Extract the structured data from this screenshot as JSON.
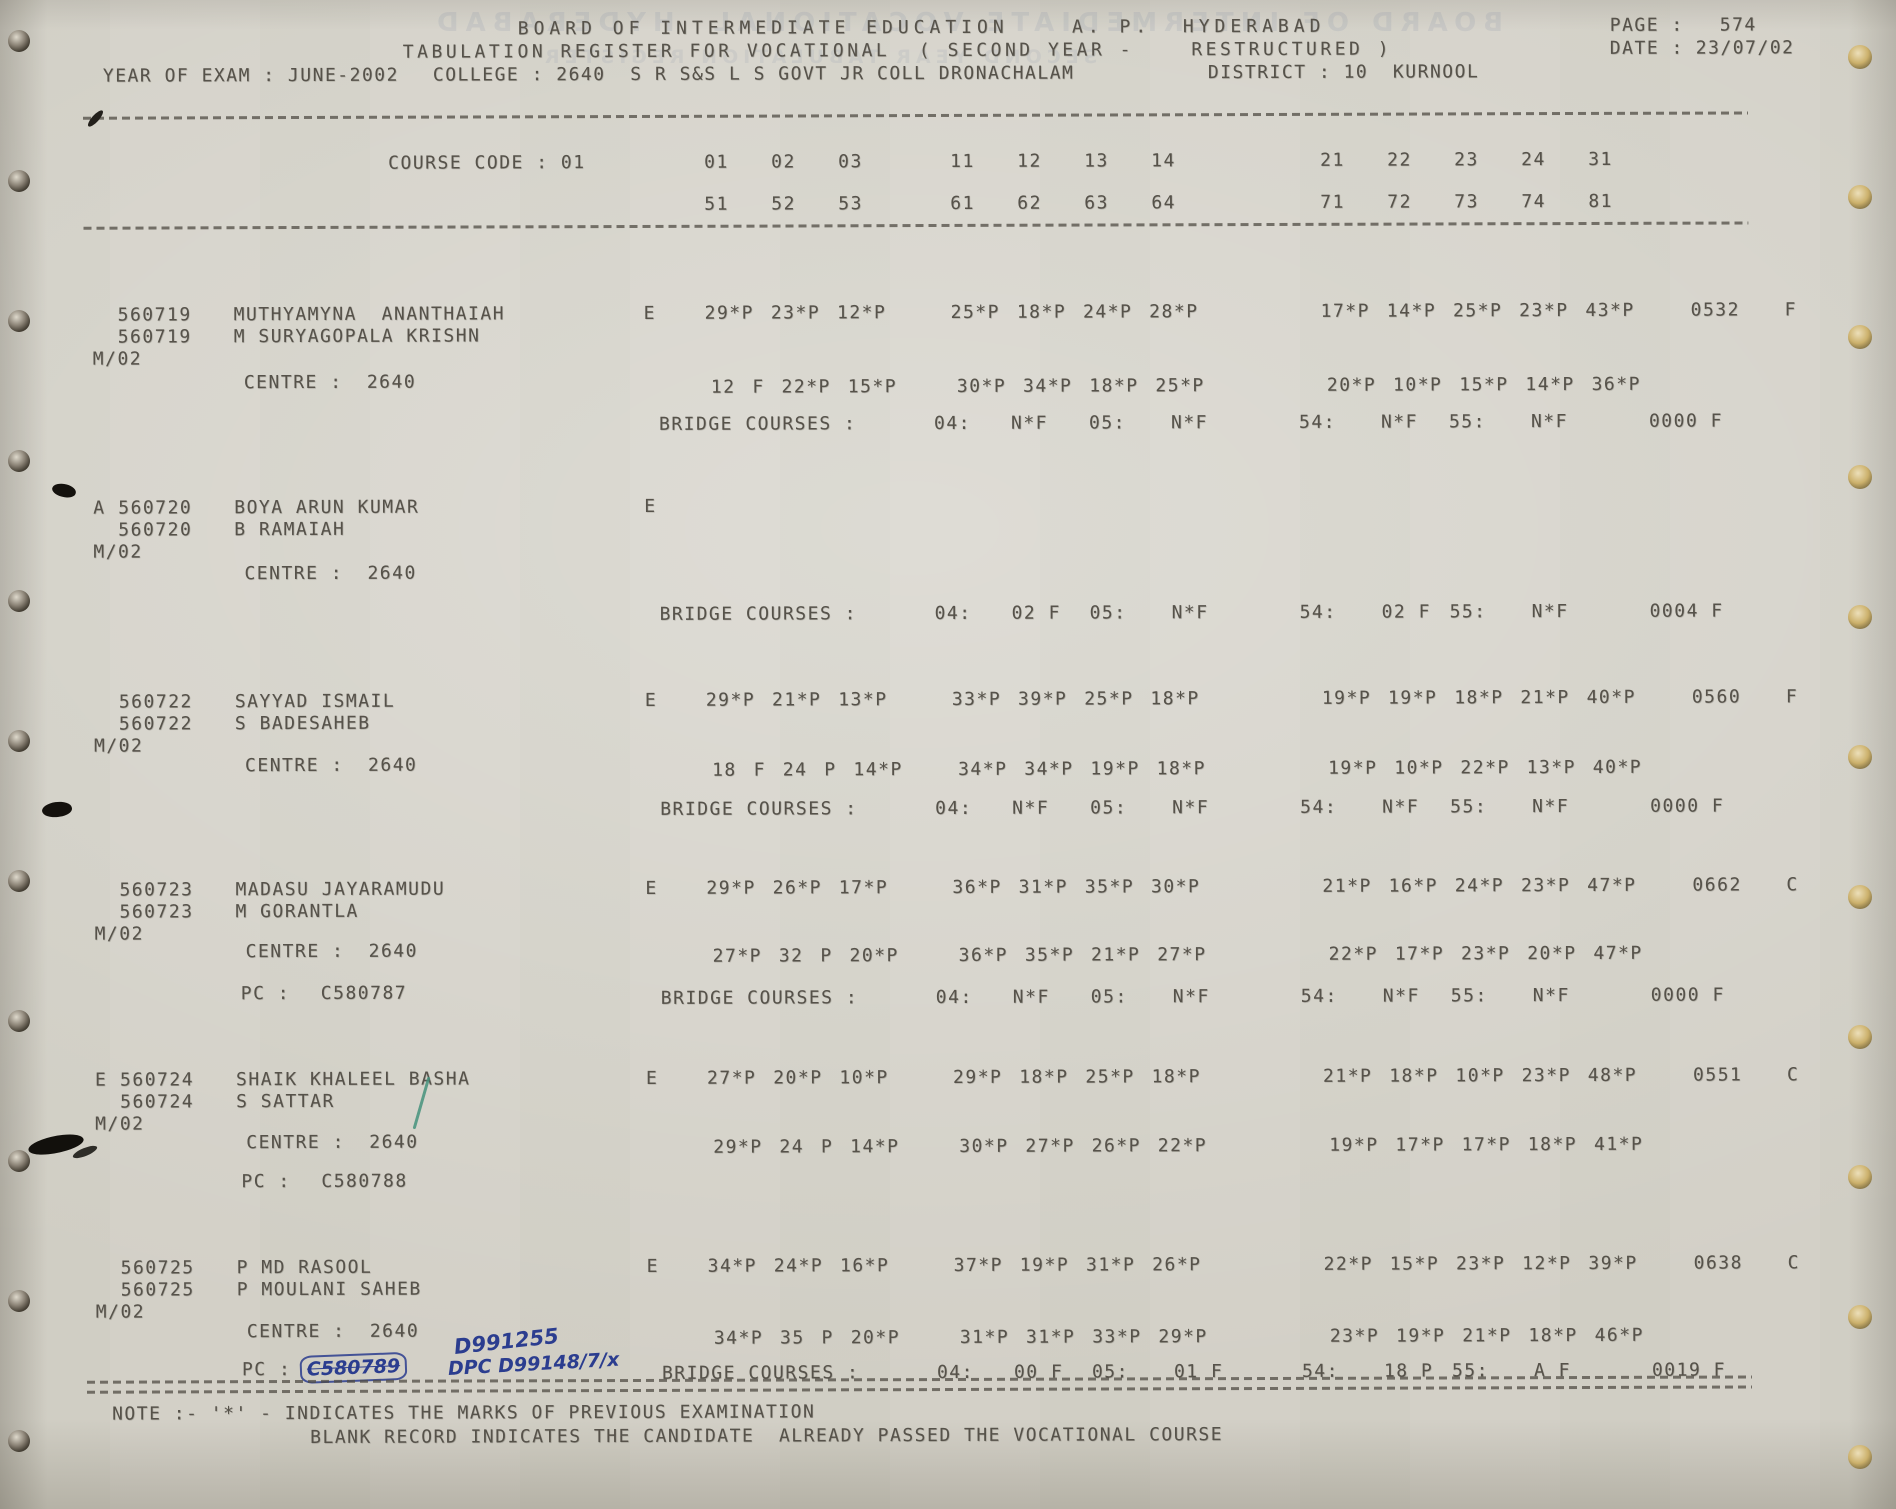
{
  "header": {
    "board_line": "BOARD OF INTERMEDIATE EDUCATION    A. P.  HYDERABAD",
    "register_line": "TABULATION REGISTER FOR VOCATIONAL  ( SECOND YEAR -    RESTRUCTURED )",
    "page_label": "PAGE :",
    "page_value": "574",
    "date_label": "DATE :",
    "date_value": "23/07/02",
    "year_of_exam": "YEAR OF EXAM : JUNE-2002",
    "college": "COLLEGE : 2640  S R S&S L S GOVT JR COLL DRONACHALAM",
    "district": "DISTRICT : 10  KURNOOL"
  },
  "course_header": {
    "label": "COURSE CODE : 01",
    "row1_g1": "01 02 03",
    "row1_g2": "11 12 13 14",
    "row1_g3": "21 22 23 24 31",
    "row2_g1": "51 52 53",
    "row2_g2": "61 62 63 64",
    "row2_g3": "71 72 73 74 81"
  },
  "records": [
    {
      "flag": "",
      "regno": "560719",
      "name": "MUTHYAMYNA  ANANTHAIAH",
      "regno2": "560719",
      "father": "M SURYAGOPALA KRISHN",
      "month_year": "M/02",
      "medium": "E",
      "m1": "29*P 23*P 12*P",
      "m2": "25*P 18*P 24*P 28*P",
      "m3": "17*P 14*P 25*P 23*P 43*P",
      "total": "0532",
      "result": "F",
      "centre_label": "CENTRE :",
      "centre_value": "2640",
      "n1": "12 F 22*P 15*P",
      "n2": "30*P 34*P 18*P 25*P",
      "n3": "20*P 10*P 15*P 14*P 36*P",
      "bridge_label": "BRIDGE COURSES :",
      "b04_label": "04:",
      "b04": "N*F",
      "b05_label": "05:",
      "b05": "N*F",
      "b54_label": "54:",
      "b54": "N*F",
      "b55_label": "55:",
      "b55": "N*F",
      "bridge_total": "0000 F"
    },
    {
      "flag": "A",
      "regno": "560720",
      "name": "BOYA ARUN KUMAR",
      "regno2": "560720",
      "father": "B RAMAIAH",
      "month_year": "M/02",
      "medium": "E",
      "centre_label": "CENTRE :",
      "centre_value": "2640",
      "bridge_label": "BRIDGE COURSES :",
      "b04_label": "04:",
      "b04": "02 F",
      "b05_label": "05:",
      "b05": "N*F",
      "b54_label": "54:",
      "b54": "02 F",
      "b55_label": "55:",
      "b55": "N*F",
      "bridge_total": "0004 F"
    },
    {
      "flag": "",
      "regno": "560722",
      "name": "SAYYAD ISMAIL",
      "regno2": "560722",
      "father": "S BADESAHEB",
      "month_year": "M/02",
      "medium": "E",
      "m1": "29*P 21*P 13*P",
      "m2": "33*P 39*P 25*P 18*P",
      "m3": "19*P 19*P 18*P 21*P 40*P",
      "total": "0560",
      "result": "F",
      "centre_label": "CENTRE :",
      "centre_value": "2640",
      "n1": "18 F 24 P 14*P",
      "n2": "34*P 34*P 19*P 18*P",
      "n3": "19*P 10*P 22*P 13*P 40*P",
      "bridge_label": "BRIDGE COURSES :",
      "b04_label": "04:",
      "b04": "N*F",
      "b05_label": "05:",
      "b05": "N*F",
      "b54_label": "54:",
      "b54": "N*F",
      "b55_label": "55:",
      "b55": "N*F",
      "bridge_total": "0000 F"
    },
    {
      "flag": "",
      "regno": "560723",
      "name": "MADASU JAYARAMUDU",
      "regno2": "560723",
      "father": "M GORANTLA",
      "month_year": "M/02",
      "medium": "E",
      "m1": "29*P 26*P 17*P",
      "m2": "36*P 31*P 35*P 30*P",
      "m3": "21*P 16*P 24*P 23*P 47*P",
      "total": "0662",
      "result": "C",
      "centre_label": "CENTRE :",
      "centre_value": "2640",
      "n1": "27*P 32 P 20*P",
      "n2": "36*P 35*P 21*P 27*P",
      "n3": "22*P 17*P 23*P 20*P 47*P",
      "pc_label": "PC :",
      "pc_value": "C580787",
      "bridge_label": "BRIDGE COURSES :",
      "b04_label": "04:",
      "b04": "N*F",
      "b05_label": "05:",
      "b05": "N*F",
      "b54_label": "54:",
      "b54": "N*F",
      "b55_label": "55:",
      "b55": "N*F",
      "bridge_total": "0000 F"
    },
    {
      "flag": "E",
      "regno": "560724",
      "name": "SHAIK KHALEEL BASHA",
      "regno2": "560724",
      "father": "S SATTAR",
      "month_year": "M/02",
      "medium": "E",
      "m1": "27*P 20*P 10*P",
      "m2": "29*P 18*P 25*P 18*P",
      "m3": "21*P 18*P 10*P 23*P 48*P",
      "total": "0551",
      "result": "C",
      "centre_label": "CENTRE :",
      "centre_value": "2640",
      "n1": "29*P 24 P 14*P",
      "n2": "30*P 27*P 26*P 22*P",
      "n3": "19*P 17*P 17*P 18*P 41*P",
      "pc_label": "PC :",
      "pc_value": "C580788"
    },
    {
      "flag": "",
      "regno": "560725",
      "name": "P MD RASOOL",
      "regno2": "560725",
      "father": "P MOULANI SAHEB",
      "month_year": "M/02",
      "medium": "E",
      "m1": "34*P 24*P 16*P",
      "m2": "37*P 19*P 31*P 26*P",
      "m3": "22*P 15*P 23*P 12*P 39*P",
      "total": "0638",
      "result": "C",
      "centre_label": "CENTRE :",
      "centre_value": "2640",
      "n1": "34*P 35 P 20*P",
      "n2": "31*P 31*P 33*P 29*P",
      "n3": "23*P 19*P 21*P 18*P 46*P",
      "pc_label": "PC :",
      "pc_value": "",
      "bridge_label": "BRIDGE COURSES :",
      "b04_label": "04:",
      "b04": "00 F",
      "b05_label": "05:",
      "b05": "01 F",
      "b54_label": "54:",
      "b54": "18 P",
      "b55_label": "55:",
      "b55": "A F",
      "bridge_total": "0019 F"
    }
  ],
  "note": {
    "line1": "NOTE :- '*' - INDICATES THE MARKS OF PREVIOUS EXAMINATION",
    "line2": "BLANK RECORD INDICATES THE CANDIDATE  ALREADY PASSED THE VOCATIONAL COURSE"
  },
  "annotations": {
    "handwritten_top": "D991255",
    "handwritten_pc": "C580789",
    "handwritten_dpc": "DPC D99148/7/x",
    "ghost_line1": "BOARD OF INTERMEDIATE VOCATIONAL  HYDERABAD",
    "ghost_line2": "SECOND YEAR TABULATION REGISTER"
  },
  "colors": {
    "ink": "#56524a",
    "pen_blue": "#2b3d8f",
    "pen_green": "#45927c",
    "paper": "#d3d0c7"
  }
}
